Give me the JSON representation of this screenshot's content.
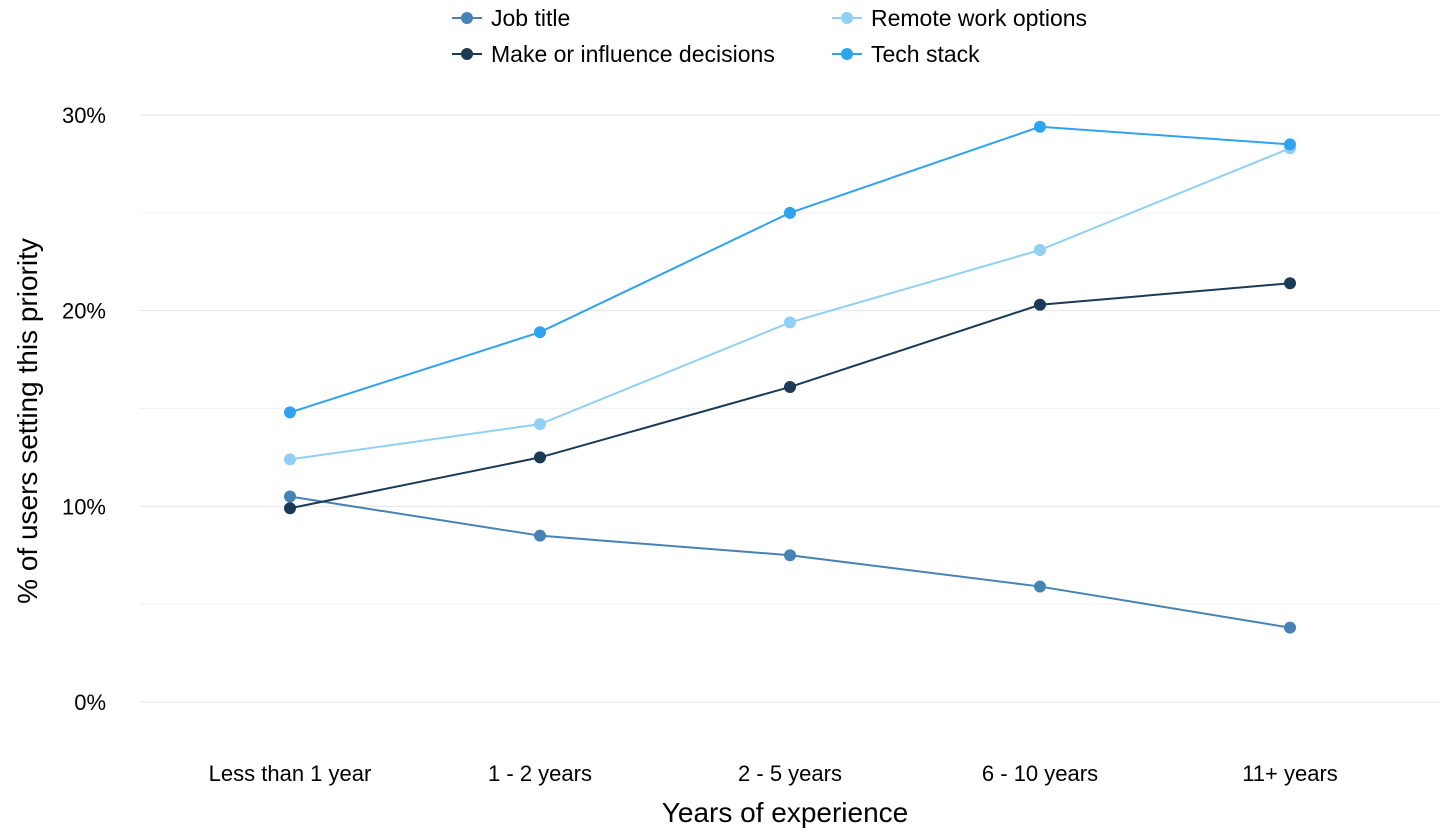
{
  "chart_data": {
    "type": "line",
    "title": "",
    "xlabel": "Years of experience",
    "ylabel": "% of users setting this priority",
    "categories": [
      "Less than 1 year",
      "1 - 2 years",
      "2 - 5 years",
      "6 - 10 years",
      "11+ years"
    ],
    "ylim": [
      0,
      30
    ],
    "yticks": [
      0,
      10,
      20,
      30
    ],
    "ytick_labels": [
      "0%",
      "10%",
      "20%",
      "30%"
    ],
    "grid": true,
    "legend_position": "top",
    "series": [
      {
        "name": "Job title",
        "color": "#4682b4",
        "values": [
          10.5,
          8.5,
          7.5,
          5.9,
          3.8
        ]
      },
      {
        "name": "Make or influence decisions",
        "color": "#1b3a56",
        "values": [
          9.9,
          12.5,
          16.1,
          20.3,
          21.4
        ]
      },
      {
        "name": "Remote work options",
        "color": "#90d0f5",
        "values": [
          12.4,
          14.2,
          19.4,
          23.1,
          28.3
        ]
      },
      {
        "name": "Tech stack",
        "color": "#30a3f0",
        "values": [
          14.8,
          18.9,
          25.0,
          29.4,
          28.5
        ]
      }
    ]
  }
}
